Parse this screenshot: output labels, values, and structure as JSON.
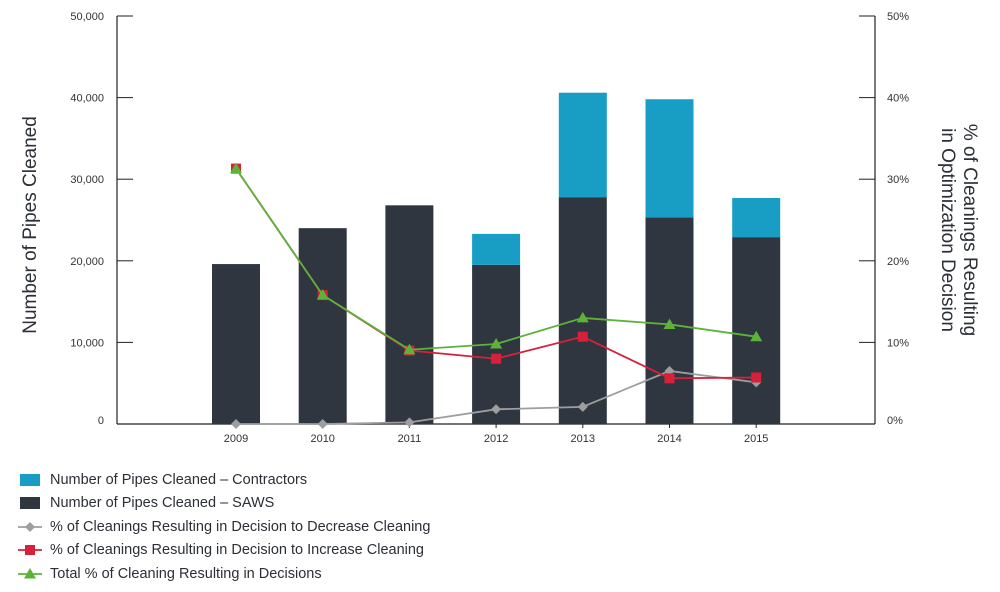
{
  "chart_data": {
    "type": "bar",
    "categories": [
      "2009",
      "2010",
      "2011",
      "2012",
      "2013",
      "2014",
      "2015"
    ],
    "ylabel": "Number of Pipes Cleaned",
    "y2label_line1": "% of Cleanings Resulting",
    "y2label_line2": "in Optimization Decision",
    "ylim": [
      0,
      50000
    ],
    "y2lim": [
      0,
      50
    ],
    "y_ticks": [
      "0",
      "10,000",
      "20,000",
      "30,000",
      "40,000",
      "50,000"
    ],
    "y2_ticks": [
      "0%",
      "10%",
      "20%",
      "30%",
      "40%",
      "50%"
    ],
    "bar_series": [
      {
        "name": "Number of Pipes Cleaned – SAWS",
        "color": "#2f3640",
        "values": [
          19600,
          24000,
          26800,
          19500,
          27800,
          25300,
          22900
        ]
      },
      {
        "name": "Number of Pipes Cleaned – Contractors",
        "color": "#189ec4",
        "values": [
          0,
          0,
          0,
          3800,
          12800,
          14500,
          4800
        ]
      }
    ],
    "line_series": [
      {
        "name": "% of Cleanings Resulting in Decision to Decrease Cleaning",
        "color": "#9e9e9e",
        "marker": "diamond",
        "values": [
          0,
          0,
          0.2,
          1.8,
          2.1,
          6.5,
          5.1
        ]
      },
      {
        "name": "% of Cleanings Resulting in Decision to Increase Cleaning",
        "color": "#d7213a",
        "marker": "square",
        "values": [
          31.3,
          15.8,
          9.0,
          8.0,
          10.7,
          5.6,
          5.7
        ]
      },
      {
        "name": "Total % of Cleaning Resulting in Decisions",
        "color": "#5db33a",
        "marker": "triangle",
        "values": [
          31.3,
          15.8,
          9.1,
          9.8,
          13.0,
          12.2,
          10.7
        ]
      }
    ]
  },
  "legend": [
    {
      "label": "Number of Pipes Cleaned – Contractors",
      "marker": "box",
      "color": "#189ec4"
    },
    {
      "label": "Number of Pipes Cleaned – SAWS",
      "marker": "box",
      "color": "#2f3640"
    },
    {
      "label": "% of Cleanings Resulting in Decision to Decrease Cleaning",
      "marker": "diamond",
      "color": "#9e9e9e"
    },
    {
      "label": "% of Cleanings Resulting in Decision to Increase Cleaning",
      "marker": "square",
      "color": "#d7213a"
    },
    {
      "label": "Total % of Cleaning Resulting in Decisions",
      "marker": "triangle",
      "color": "#5db33a"
    }
  ]
}
